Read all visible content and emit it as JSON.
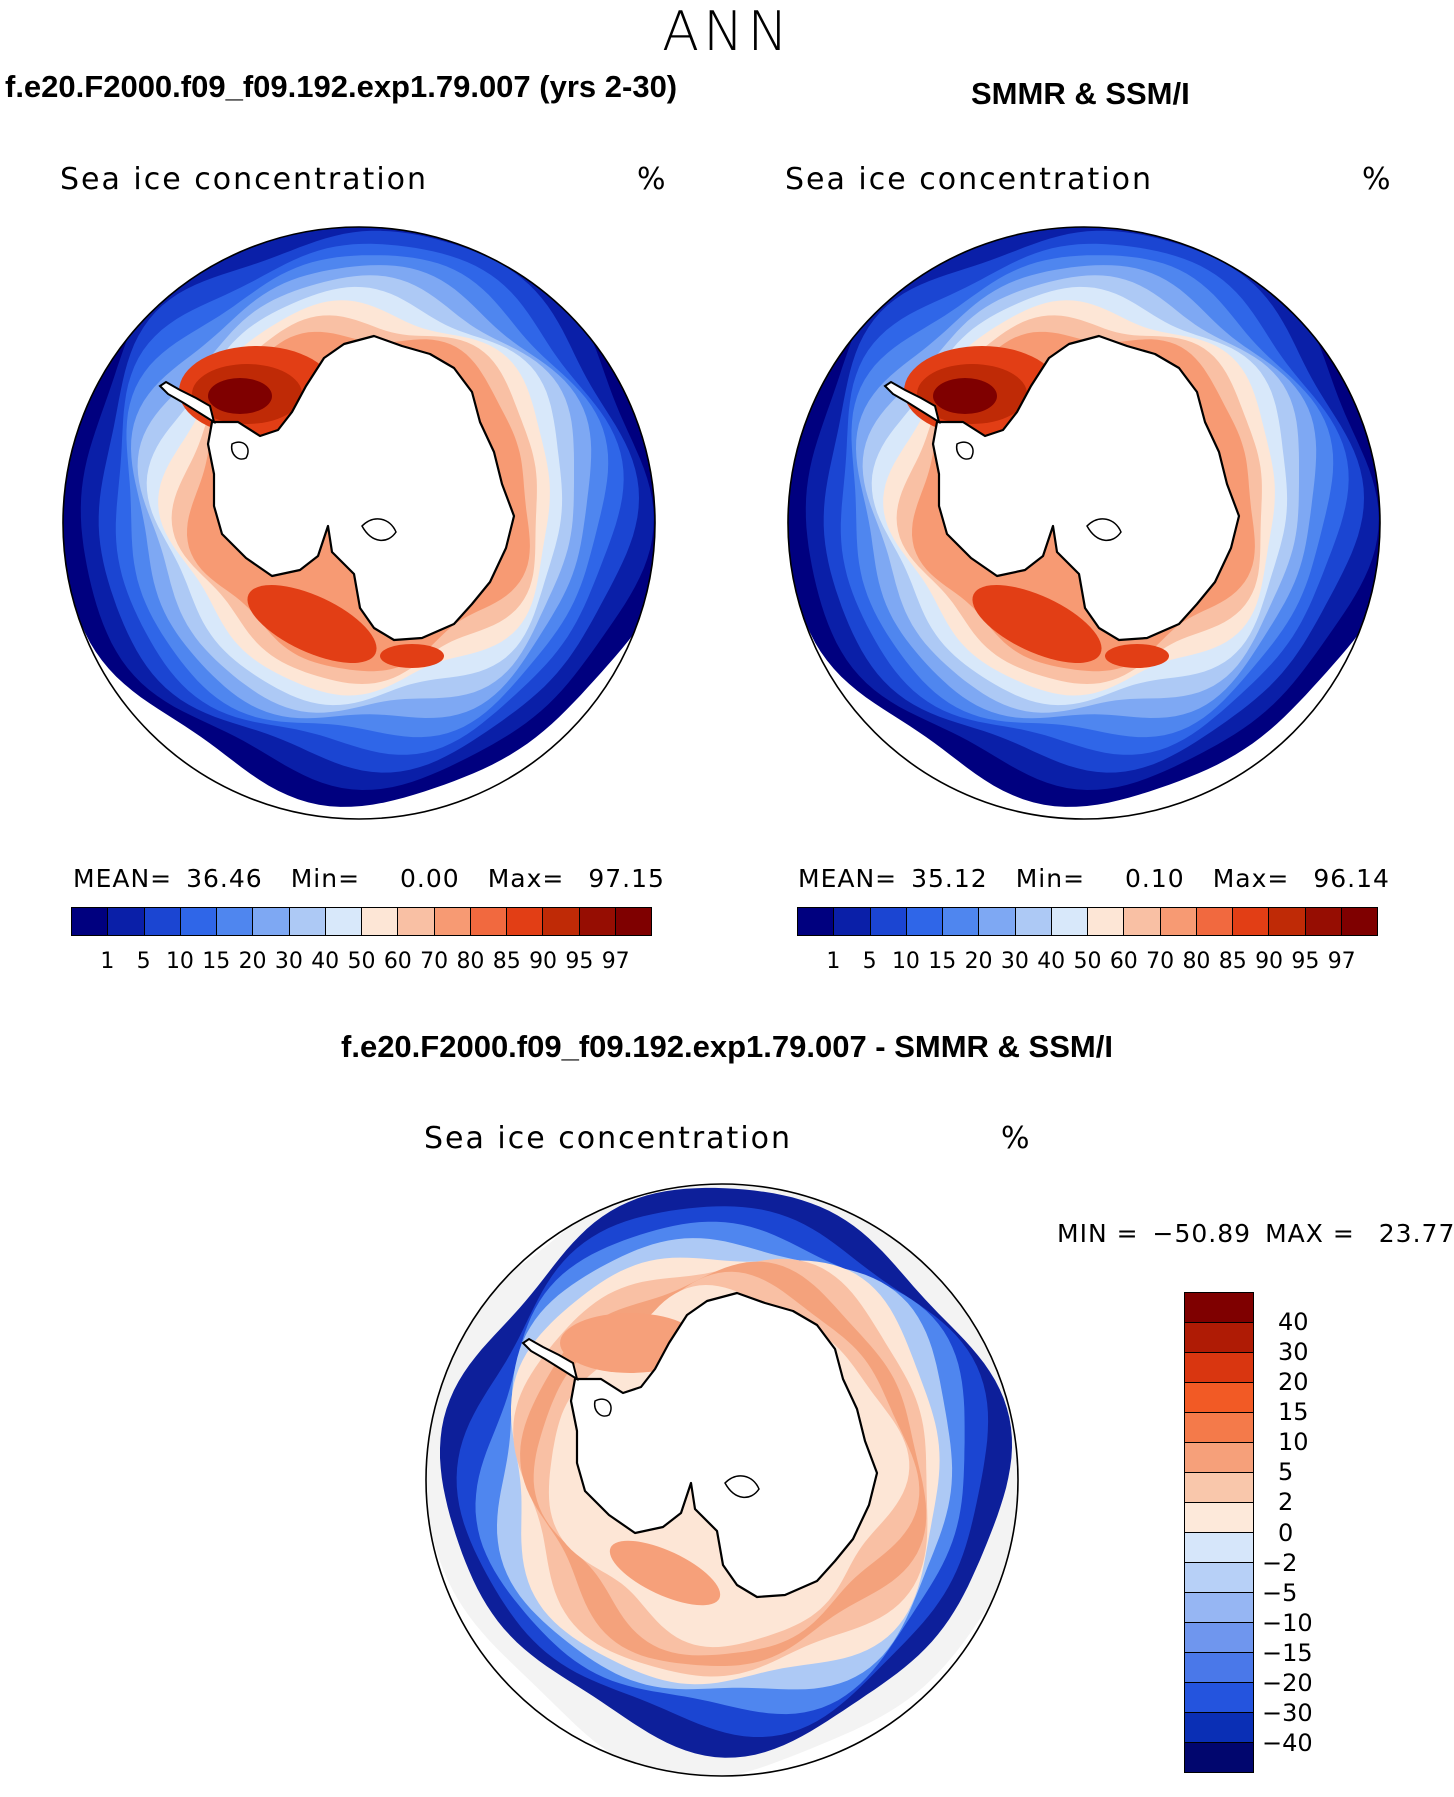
{
  "season": "ANN",
  "panels": [
    {
      "title": "f.e20.F2000.f09_f09.192.exp1.79.007 (yrs 2-30)",
      "variable": "Sea ice concentration",
      "units": "%",
      "stats": {
        "mean_label": "MEAN=",
        "mean": "36.46",
        "min_label": "Min=",
        "min": "0.00",
        "max_label": "Max=",
        "max": "97.15"
      },
      "peak_value": 97.15
    },
    {
      "title": "SMMR & SSM/I",
      "variable": "Sea ice concentration",
      "units": "%",
      "stats": {
        "mean_label": "MEAN=",
        "mean": "35.12",
        "min_label": "Min=",
        "min": "0.10",
        "max_label": "Max=",
        "max": "96.14"
      },
      "peak_value": 96.14
    }
  ],
  "abs_colorbar": {
    "ticks": [
      "1",
      "5",
      "10",
      "15",
      "20",
      "30",
      "40",
      "50",
      "60",
      "70",
      "80",
      "85",
      "90",
      "95",
      "97"
    ],
    "colors": [
      "#00007f",
      "#0a1fa8",
      "#1b45d2",
      "#2f66e8",
      "#4f86ef",
      "#7ea8f3",
      "#adc9f5",
      "#d8e8fa",
      "#fde6d6",
      "#f9c0a4",
      "#f79a73",
      "#f1693f",
      "#e23e15",
      "#bf2a06",
      "#960d02",
      "#7f0000"
    ]
  },
  "diff": {
    "title": "f.e20.F2000.f09_f09.192.exp1.79.007 - SMMR & SSM/I",
    "variable": "Sea ice concentration",
    "units": "%",
    "minmax": {
      "min_label": "MIN =",
      "min": "−50.89",
      "max_label": "MAX =",
      "max": "23.77"
    },
    "colorbar": {
      "ticks": [
        "40",
        "30",
        "20",
        "15",
        "10",
        "5",
        "2",
        "0",
        "−2",
        "−5",
        "−10",
        "−15",
        "−20",
        "−30",
        "−40"
      ],
      "colors": [
        "#7f0000",
        "#af1b05",
        "#d93610",
        "#f25a25",
        "#f47a4a",
        "#f6a07a",
        "#f9c7ab",
        "#fde9da",
        "#d6e6fa",
        "#b7d0f7",
        "#96b6f3",
        "#6f96ee",
        "#4a78e9",
        "#2454de",
        "#0a2fb5",
        "#01066e"
      ]
    }
  }
}
